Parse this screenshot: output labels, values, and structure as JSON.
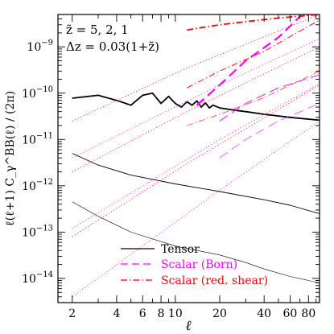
{
  "chart_data": {
    "type": "line",
    "xlabel": "ℓ",
    "ylabel": "ℓ(ℓ+1) C_γ^BB(ℓ) / (2π)",
    "xscale": "log",
    "yscale": "log",
    "xlim": [
      1.6,
      95
    ],
    "ylim": [
      3e-15,
      5e-09
    ],
    "x_ticks": [
      2,
      4,
      6,
      8,
      10,
      20,
      40,
      60,
      80
    ],
    "x_tick_labels": [
      "2",
      "4",
      "6",
      "8",
      "10",
      "20",
      "40",
      "60",
      "80"
    ],
    "y_ticks": [
      1e-14,
      1e-13,
      1e-12,
      1e-11,
      1e-10,
      1e-09
    ],
    "y_tick_labels": [
      {
        "base": "10",
        "exp": "−14"
      },
      {
        "base": "10",
        "exp": "−13"
      },
      {
        "base": "10",
        "exp": "−12"
      },
      {
        "base": "10",
        "exp": "−11"
      },
      {
        "base": "10",
        "exp": "−10"
      },
      {
        "base": "10",
        "exp": "−9"
      }
    ],
    "annotations": [
      "z̃ = 5, 2, 1",
      "Δz = 0.03(1+z̃)"
    ],
    "legend_placement": "bottom-right",
    "colors": {
      "tensor": "#000000",
      "born": "#ff00ff",
      "shear": "#ff0000"
    },
    "series": [
      {
        "name": "Tensor",
        "group": "tensor",
        "width": 1.8,
        "x": [
          2,
          3,
          4,
          5,
          6,
          7,
          8,
          9,
          10,
          11,
          12,
          13,
          14,
          15,
          16,
          17,
          18,
          20,
          25,
          30,
          40,
          60,
          95
        ],
        "y": [
          7.8e-11,
          9e-11,
          7e-11,
          5.5e-11,
          9e-11,
          1e-10,
          6e-11,
          8.5e-11,
          6e-11,
          5e-11,
          6.5e-11,
          5.5e-11,
          6.8e-11,
          5e-11,
          6.2e-11,
          4.8e-11,
          5.5e-11,
          4.8e-11,
          4.3e-11,
          4e-11,
          3.5e-11,
          3e-11,
          2.6e-11
        ]
      },
      {
        "group": "tensor",
        "width": 0.9,
        "x": [
          2,
          3,
          5,
          10,
          20,
          40,
          60,
          95
        ],
        "y": [
          5e-12,
          2.8e-12,
          1.7e-12,
          1.1e-12,
          7.5e-13,
          5e-13,
          3.8e-13,
          2.5e-13
        ]
      },
      {
        "group": "tensor",
        "width": 0.6,
        "x": [
          2,
          3,
          5,
          10,
          20,
          30,
          40,
          60,
          95
        ],
        "y": [
          4.5e-13,
          2.2e-13,
          1e-13,
          5e-14,
          3.2e-14,
          2.2e-14,
          1.6e-14,
          1.1e-14,
          8e-15
        ]
      },
      {
        "name": "Scalar (Born)",
        "group": "born",
        "style": "long-dash",
        "width": 2.2,
        "x": [
          14,
          20,
          30,
          50,
          70
        ],
        "y": [
          5.5e-11,
          1.5e-10,
          5e-10,
          1.6e-09,
          4.5e-09
        ]
      },
      {
        "group": "born",
        "style": "long-dash",
        "width": 0.9,
        "x": [
          20,
          30,
          50,
          95
        ],
        "y": [
          2.5e-11,
          6e-11,
          1.3e-10,
          2.5e-10
        ]
      },
      {
        "group": "born",
        "style": "long-dash",
        "width": 0.6,
        "x": [
          20,
          30,
          50,
          95
        ],
        "y": [
          4e-12,
          1e-11,
          2.5e-11,
          6e-11
        ]
      },
      {
        "group": "born",
        "style": "dotted",
        "width": 0.8,
        "x": [
          2,
          20,
          95
        ],
        "y": [
          4e-12,
          1.5e-10,
          1.5e-09
        ]
      },
      {
        "group": "born",
        "style": "dotted",
        "width": 0.8,
        "x": [
          2,
          20,
          95
        ],
        "y": [
          1.2e-13,
          1e-11,
          1.6e-10
        ]
      },
      {
        "group": "born",
        "style": "dotted",
        "width": 0.8,
        "x": [
          2,
          20,
          95
        ],
        "y": [
          4e-15,
          8e-13,
          2.5e-11
        ]
      },
      {
        "name": "Scalar (red. shear)",
        "group": "shear",
        "style": "dash-dot",
        "width": 1.8,
        "x": [
          12,
          15,
          20,
          30,
          50,
          95
        ],
        "y": [
          2.3e-09,
          2.6e-09,
          3e-09,
          3.5e-09,
          4.2e-09,
          5e-09
        ]
      },
      {
        "group": "shear",
        "style": "dash-dot",
        "width": 0.9,
        "x": [
          12,
          20,
          40,
          95
        ],
        "y": [
          1.3e-10,
          3e-10,
          8e-10,
          3.8e-09
        ]
      },
      {
        "group": "shear",
        "style": "dash-dot",
        "width": 0.6,
        "x": [
          12,
          20,
          40,
          95
        ],
        "y": [
          2e-11,
          3.5e-11,
          8e-11,
          3e-10
        ]
      },
      {
        "group": "shear",
        "style": "dotted",
        "width": 0.8,
        "x": [
          2,
          12,
          95
        ],
        "y": [
          2.5e-11,
          3.5e-10,
          5e-09
        ]
      },
      {
        "group": "shear",
        "style": "dotted",
        "width": 0.8,
        "x": [
          2,
          12,
          95
        ],
        "y": [
          2e-12,
          4e-11,
          1e-09
        ]
      },
      {
        "group": "shear",
        "style": "dotted",
        "width": 0.8,
        "x": [
          2,
          12,
          95
        ],
        "y": [
          8e-14,
          3e-12,
          1.5e-10
        ]
      }
    ]
  }
}
